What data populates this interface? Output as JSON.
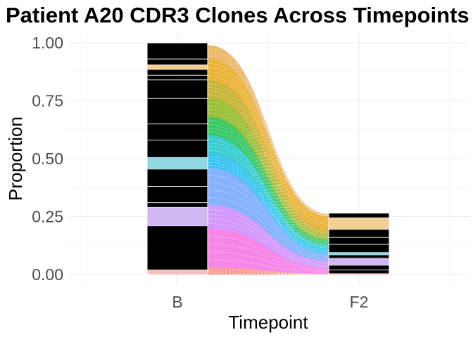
{
  "chart_data": {
    "type": "alluvial",
    "title": "Patient A20 CDR3 Clones Across Timepoints",
    "xlabel": "Timepoint",
    "ylabel": "Proportion",
    "categories": [
      "B",
      "F2"
    ],
    "ylim": [
      0,
      1
    ],
    "yticks": [
      "0.00",
      "0.25",
      "0.50",
      "0.75",
      "1.00"
    ],
    "totals": [
      1.0,
      0.265
    ],
    "grid": true,
    "legend": "none",
    "colors": {
      "stratum_fill": "#000000",
      "stratum_border": "#ffffff",
      "grid": "#ebebeb"
    },
    "highlighted_strata": [
      {
        "color": "#f2cf92",
        "B": [
          0.885,
          0.905
        ],
        "F2": [
          0.195,
          0.245
        ]
      },
      {
        "color": "#8fd8e2",
        "B": [
          0.455,
          0.505
        ],
        "F2": [
          0.085,
          0.095
        ]
      },
      {
        "color": "#d0b8f2",
        "B": [
          0.21,
          0.29
        ],
        "F2": [
          0.04,
          0.07
        ]
      },
      {
        "color": "#f3c0c0",
        "B": [
          0.0,
          0.02
        ],
        "F2": [
          0.0,
          0.005
        ]
      }
    ],
    "flow_bands": [
      {
        "color": "#F8766D",
        "B": [
          0.0,
          0.03
        ],
        "F2": [
          0.0,
          0.003
        ]
      },
      {
        "color": "#F564E3",
        "B": [
          0.03,
          0.2
        ],
        "F2": [
          0.003,
          0.028
        ]
      },
      {
        "color": "#C77CFF",
        "B": [
          0.2,
          0.3
        ],
        "F2": [
          0.028,
          0.06
        ]
      },
      {
        "color": "#619CFF",
        "B": [
          0.3,
          0.46
        ],
        "F2": [
          0.06,
          0.09
        ]
      },
      {
        "color": "#00B4EF",
        "B": [
          0.46,
          0.52
        ],
        "F2": [
          0.09,
          0.11
        ]
      },
      {
        "color": "#00BFC4",
        "B": [
          0.52,
          0.6
        ],
        "F2": [
          0.11,
          0.13
        ]
      },
      {
        "color": "#00BA38",
        "B": [
          0.6,
          0.68
        ],
        "F2": [
          0.13,
          0.15
        ]
      },
      {
        "color": "#7CAE00",
        "B": [
          0.68,
          0.76
        ],
        "F2": [
          0.15,
          0.17
        ]
      },
      {
        "color": "#B79F00",
        "B": [
          0.76,
          0.84
        ],
        "F2": [
          0.17,
          0.195
        ]
      },
      {
        "color": "#E69F00",
        "B": [
          0.84,
          0.93
        ],
        "F2": [
          0.195,
          0.25
        ]
      },
      {
        "color": "#E7A33A",
        "B": [
          0.93,
          0.99
        ],
        "F2": [
          0.25,
          0.262
        ]
      }
    ]
  }
}
